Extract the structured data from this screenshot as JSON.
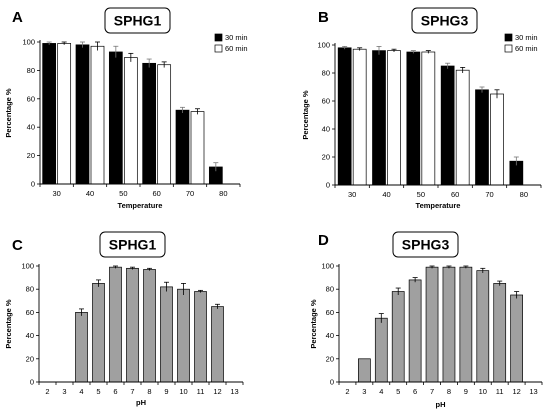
{
  "chart_data": [
    {
      "panel": "A",
      "type": "bar",
      "title": "SPHG1",
      "xlabel": "Temperature",
      "ylabel": "Percentage %",
      "ylim": [
        0,
        100
      ],
      "yticks": [
        0,
        20,
        40,
        60,
        80,
        100
      ],
      "categories": [
        "30",
        "40",
        "50",
        "60",
        "70",
        "80"
      ],
      "series": [
        {
          "name": "30 min",
          "color": "#000000",
          "values": [
            99,
            98,
            93,
            85,
            52,
            12
          ],
          "errors": [
            1,
            2,
            4,
            3,
            2,
            3
          ]
        },
        {
          "name": "60 min",
          "color": "#ffffff",
          "values": [
            99,
            97,
            89,
            84,
            51,
            null
          ],
          "errors": [
            1,
            3,
            3,
            2,
            2,
            null
          ]
        }
      ],
      "legend": "right",
      "grid": false
    },
    {
      "panel": "B",
      "type": "bar",
      "title": "SPHG3",
      "xlabel": "Temperature",
      "ylabel": "Percentage %",
      "ylim": [
        0,
        100
      ],
      "yticks": [
        0,
        20,
        40,
        60,
        80,
        100
      ],
      "categories": [
        "30",
        "40",
        "50",
        "60",
        "70",
        "80"
      ],
      "series": [
        {
          "name": "30 min",
          "color": "#000000",
          "values": [
            98,
            96,
            95,
            85,
            68,
            17
          ],
          "errors": [
            1,
            3,
            1,
            2,
            2,
            3
          ]
        },
        {
          "name": "60 min",
          "color": "#ffffff",
          "values": [
            97,
            96,
            95,
            82,
            65,
            null
          ],
          "errors": [
            1,
            1,
            1,
            2,
            3,
            null
          ]
        }
      ],
      "legend": "right",
      "grid": false
    },
    {
      "panel": "C",
      "type": "bar",
      "title": "SPHG1",
      "xlabel": "pH",
      "ylabel": "Percentage %",
      "ylim": [
        0,
        100
      ],
      "yticks": [
        0,
        20,
        40,
        60,
        80,
        100
      ],
      "categories": [
        "2",
        "3",
        "4",
        "5",
        "6",
        "7",
        "8",
        "9",
        "10",
        "11",
        "12",
        "13"
      ],
      "series": [
        {
          "name": "",
          "color": "#a0a0a0",
          "values": [
            null,
            null,
            60,
            85,
            99,
            98,
            97,
            82,
            80,
            78,
            65,
            null
          ],
          "errors": [
            null,
            null,
            3,
            3,
            1,
            1,
            1,
            4,
            5,
            1,
            2,
            null
          ]
        }
      ],
      "legend": "none",
      "grid": false
    },
    {
      "panel": "D",
      "type": "bar",
      "title": "SPHG3",
      "xlabel": "pH",
      "ylabel": "Percentage %",
      "ylim": [
        0,
        100
      ],
      "yticks": [
        0,
        20,
        40,
        60,
        80,
        100
      ],
      "categories": [
        "2",
        "3",
        "4",
        "5",
        "6",
        "7",
        "8",
        "9",
        "10",
        "11",
        "12",
        "13"
      ],
      "series": [
        {
          "name": "",
          "color": "#a0a0a0",
          "values": [
            null,
            20,
            55,
            78,
            88,
            99,
            99,
            99,
            96,
            85,
            75,
            null
          ],
          "errors": [
            null,
            0,
            4,
            3,
            2,
            1,
            1,
            1,
            2,
            2,
            3,
            null
          ]
        }
      ],
      "legend": "none",
      "grid": false
    }
  ]
}
